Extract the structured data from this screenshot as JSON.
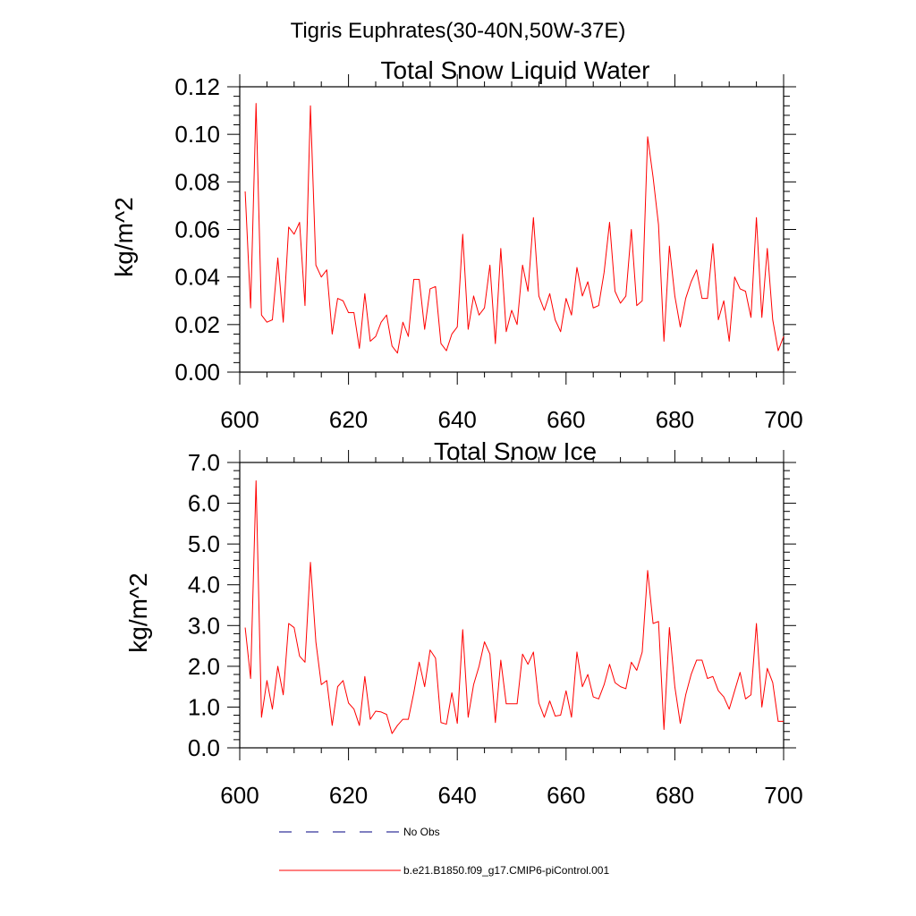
{
  "figure_title": "Tigris Euphrates(30-40N,50W-37E)",
  "chart_data": [
    {
      "type": "line",
      "title": "Total Snow Liquid Water",
      "xlabel": "",
      "ylabel": "kg/m^2",
      "xlim": [
        600,
        700
      ],
      "ylim": [
        0,
        0.12
      ],
      "xticks": [
        600,
        620,
        640,
        660,
        680,
        700
      ],
      "xtick_labels": [
        "600",
        "620",
        "640",
        "660",
        "680",
        "700"
      ],
      "yticks": [
        0,
        0.02,
        0.04,
        0.06,
        0.08,
        0.1,
        0.12
      ],
      "ytick_labels": [
        "0.00",
        "0.02",
        "0.04",
        "0.06",
        "0.08",
        "0.10",
        "0.12"
      ],
      "series": [
        {
          "name": "b.e21.B1850.f09_g17.CMIP6-piControl.001",
          "color": "#ff0000",
          "x": [
            601,
            602,
            603,
            604,
            605,
            606,
            607,
            608,
            609,
            610,
            611,
            612,
            613,
            614,
            615,
            616,
            617,
            618,
            619,
            620,
            621,
            622,
            623,
            624,
            625,
            626,
            627,
            628,
            629,
            630,
            631,
            632,
            633,
            634,
            635,
            636,
            637,
            638,
            639,
            640,
            641,
            642,
            643,
            644,
            645,
            646,
            647,
            648,
            649,
            650,
            651,
            652,
            653,
            654,
            655,
            656,
            657,
            658,
            659,
            660,
            661,
            662,
            663,
            664,
            665,
            666,
            667,
            668,
            669,
            670,
            671,
            672,
            673,
            674,
            675,
            676,
            677,
            678,
            679,
            680,
            681,
            682,
            683,
            684,
            685,
            686,
            687,
            688,
            689,
            690,
            691,
            692,
            693,
            694,
            695,
            696,
            697,
            698,
            699,
            700
          ],
          "values": [
            0.076,
            0.027,
            0.113,
            0.024,
            0.021,
            0.022,
            0.048,
            0.021,
            0.061,
            0.058,
            0.063,
            0.028,
            0.112,
            0.045,
            0.04,
            0.043,
            0.016,
            0.031,
            0.03,
            0.025,
            0.025,
            0.01,
            0.033,
            0.013,
            0.015,
            0.021,
            0.024,
            0.011,
            0.008,
            0.021,
            0.015,
            0.039,
            0.039,
            0.018,
            0.035,
            0.036,
            0.012,
            0.009,
            0.016,
            0.019,
            0.058,
            0.018,
            0.032,
            0.024,
            0.027,
            0.045,
            0.012,
            0.052,
            0.017,
            0.026,
            0.02,
            0.045,
            0.034,
            0.065,
            0.032,
            0.026,
            0.033,
            0.022,
            0.017,
            0.031,
            0.024,
            0.044,
            0.032,
            0.038,
            0.027,
            0.028,
            0.042,
            0.063,
            0.034,
            0.029,
            0.032,
            0.06,
            0.028,
            0.03,
            0.099,
            0.082,
            0.062,
            0.013,
            0.053,
            0.032,
            0.019,
            0.031,
            0.038,
            0.043,
            0.031,
            0.031,
            0.054,
            0.022,
            0.03,
            0.013,
            0.04,
            0.035,
            0.034,
            0.023,
            0.065,
            0.023,
            0.052,
            0.022,
            0.009,
            0.015
          ]
        }
      ]
    },
    {
      "type": "line",
      "title": "Total Snow Ice",
      "xlabel": "",
      "ylabel": "kg/m^2",
      "xlim": [
        600,
        700
      ],
      "ylim": [
        0,
        7.0
      ],
      "xticks": [
        600,
        620,
        640,
        660,
        680,
        700
      ],
      "xtick_labels": [
        "600",
        "620",
        "640",
        "660",
        "680",
        "700"
      ],
      "yticks": [
        0,
        1,
        2,
        3,
        4,
        5,
        6,
        7
      ],
      "ytick_labels": [
        "0.0",
        "1.0",
        "2.0",
        "3.0",
        "4.0",
        "5.0",
        "6.0",
        "7.0"
      ],
      "series": [
        {
          "name": "b.e21.B1850.f09_g17.CMIP6-piControl.001",
          "color": "#ff0000",
          "x": [
            601,
            602,
            603,
            604,
            605,
            606,
            607,
            608,
            609,
            610,
            611,
            612,
            613,
            614,
            615,
            616,
            617,
            618,
            619,
            620,
            621,
            622,
            623,
            624,
            625,
            626,
            627,
            628,
            629,
            630,
            631,
            632,
            633,
            634,
            635,
            636,
            637,
            638,
            639,
            640,
            641,
            642,
            643,
            644,
            645,
            646,
            647,
            648,
            649,
            650,
            651,
            652,
            653,
            654,
            655,
            656,
            657,
            658,
            659,
            660,
            661,
            662,
            663,
            664,
            665,
            666,
            667,
            668,
            669,
            670,
            671,
            672,
            673,
            674,
            675,
            676,
            677,
            678,
            679,
            680,
            681,
            682,
            683,
            684,
            685,
            686,
            687,
            688,
            689,
            690,
            691,
            692,
            693,
            694,
            695,
            696,
            697,
            698,
            699,
            700
          ],
          "values": [
            2.95,
            1.7,
            6.55,
            0.75,
            1.65,
            0.95,
            2.0,
            1.3,
            3.05,
            2.95,
            2.25,
            2.1,
            4.55,
            2.6,
            1.55,
            1.65,
            0.55,
            1.5,
            1.65,
            1.1,
            0.95,
            0.55,
            1.75,
            0.7,
            0.9,
            0.88,
            0.82,
            0.35,
            0.55,
            0.7,
            0.7,
            1.35,
            2.1,
            1.5,
            2.4,
            2.2,
            0.62,
            0.58,
            1.35,
            0.6,
            2.9,
            0.75,
            1.55,
            2.0,
            2.6,
            2.3,
            0.62,
            2.15,
            1.08,
            1.08,
            1.08,
            2.3,
            2.05,
            2.35,
            1.1,
            0.75,
            1.15,
            0.78,
            0.8,
            1.4,
            0.75,
            2.35,
            1.5,
            1.8,
            1.25,
            1.2,
            1.55,
            2.05,
            1.6,
            1.5,
            1.45,
            2.1,
            1.9,
            2.35,
            4.35,
            3.05,
            3.1,
            0.45,
            2.95,
            1.5,
            0.6,
            1.3,
            1.8,
            2.15,
            2.15,
            1.7,
            1.75,
            1.4,
            1.25,
            0.95,
            1.4,
            1.85,
            1.2,
            1.3,
            3.05,
            1.0,
            1.95,
            1.6,
            0.65,
            0.65
          ]
        }
      ]
    }
  ],
  "legend": [
    {
      "label": "No Obs",
      "color": "#000080",
      "style": "dashed"
    },
    {
      "label": "b.e21.B1850.f09_g17.CMIP6-piControl.001",
      "color": "#ff0000",
      "style": "solid"
    }
  ]
}
